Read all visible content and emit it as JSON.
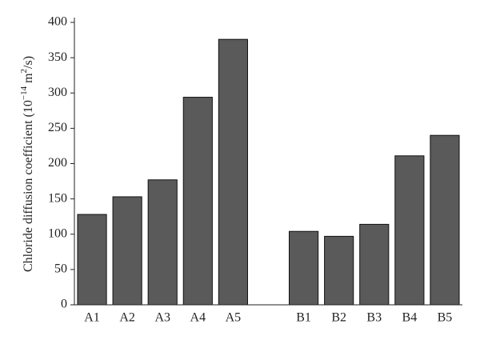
{
  "chart_data": {
    "type": "bar",
    "ylabel": [
      "Chloride diffusion coefficient (10",
      "−14",
      " m",
      "2",
      "/s)"
    ],
    "categories": [
      "A1",
      "A2",
      "A3",
      "A4",
      "A5",
      null,
      "B1",
      "B2",
      "B3",
      "B4",
      "B5"
    ],
    "values": [
      128,
      153,
      177,
      294,
      376,
      null,
      104,
      97,
      114,
      211,
      240
    ],
    "color": "#5a5a5a",
    "ylim": [
      0,
      400
    ],
    "yticks": [
      0,
      50,
      100,
      150,
      200,
      250,
      300,
      350,
      400
    ],
    "grid": false
  }
}
